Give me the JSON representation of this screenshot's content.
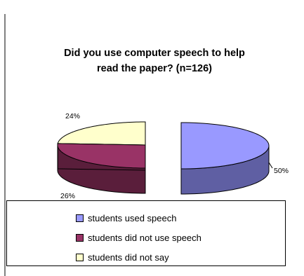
{
  "chart_data": {
    "type": "pie",
    "title_line1": "Did you use computer speech to help",
    "title_line2": "read the paper? (n=126)",
    "slices": [
      {
        "name": "students used speech",
        "value": 50,
        "label": "50%",
        "color": "#9999ff",
        "side": "#5f5fa3"
      },
      {
        "name": "students did not use speech",
        "value": 26,
        "label": "26%",
        "color": "#993366",
        "side": "#5a1e3b"
      },
      {
        "name": "students did not say",
        "value": 24,
        "label": "24%",
        "color": "#ffffcc",
        "side": "#8a8a6e"
      }
    ],
    "three_d": true,
    "exploded": true,
    "legend": "bottom"
  }
}
